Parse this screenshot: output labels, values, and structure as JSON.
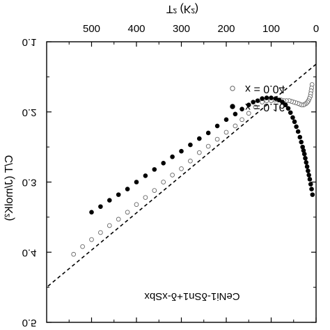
{
  "chart_data": {
    "type": "scatter",
    "orientation": "mirrored-horizontal",
    "xlabel": "T² (K²)",
    "ylabel": "C/T (J/molK²)",
    "annotation": "CeNi1-δSn1+δ-xSbx",
    "xlim": [
      0,
      600
    ],
    "ylim": [
      0.1,
      0.5
    ],
    "xticks": [
      "0",
      "100",
      "200",
      "300",
      "400",
      "500"
    ],
    "yticks": [
      "0.1",
      "0.2",
      "0.3",
      "0.4",
      "0.5"
    ],
    "legend_position": "top-right",
    "series": [
      {
        "name": "x = 0.04",
        "marker": "open-circle",
        "x": [
          9,
          10,
          11,
          12,
          13,
          15,
          17,
          19,
          22,
          25,
          28,
          32,
          36,
          40,
          45,
          50,
          55,
          60,
          66,
          72,
          78,
          85,
          92,
          100,
          110,
          120,
          135,
          150,
          165,
          180,
          200,
          220,
          240,
          260,
          280,
          300,
          320,
          340,
          360,
          380,
          400,
          420,
          440,
          460,
          480,
          500,
          520,
          540
        ],
        "y": [
          0.161,
          0.166,
          0.17,
          0.174,
          0.178,
          0.181,
          0.184,
          0.186,
          0.188,
          0.189,
          0.19,
          0.19,
          0.189,
          0.188,
          0.187,
          0.186,
          0.185,
          0.184,
          0.184,
          0.184,
          0.183,
          0.183,
          0.183,
          0.184,
          0.184,
          0.186,
          0.193,
          0.202,
          0.211,
          0.22,
          0.229,
          0.239,
          0.249,
          0.258,
          0.27,
          0.281,
          0.29,
          0.3,
          0.312,
          0.322,
          0.332,
          0.343,
          0.353,
          0.362,
          0.372,
          0.382,
          0.392,
          0.403
        ]
      },
      {
        "name": "x = 0.16",
        "marker": "filled-circle",
        "x": [
          8,
          10,
          12,
          14,
          16,
          18,
          20,
          22,
          24,
          26,
          28,
          30,
          33,
          36,
          40,
          44,
          48,
          52,
          57,
          62,
          68,
          75,
          82,
          90,
          100,
          110,
          120,
          130,
          140,
          150,
          165,
          180,
          200,
          220,
          240,
          260,
          280,
          300,
          320,
          340,
          360,
          380,
          400,
          420,
          440,
          460,
          480,
          500
        ],
        "y": [
          0.318,
          0.31,
          0.303,
          0.296,
          0.29,
          0.284,
          0.278,
          0.272,
          0.266,
          0.26,
          0.255,
          0.25,
          0.243,
          0.236,
          0.228,
          0.221,
          0.214,
          0.208,
          0.201,
          0.195,
          0.19,
          0.186,
          0.183,
          0.181,
          0.18,
          0.18,
          0.181,
          0.184,
          0.186,
          0.19,
          0.196,
          0.203,
          0.211,
          0.22,
          0.23,
          0.238,
          0.247,
          0.256,
          0.264,
          0.273,
          0.282,
          0.291,
          0.3,
          0.31,
          0.318,
          0.326,
          0.335,
          0.343
        ]
      }
    ],
    "fit_line": {
      "style": "dashed",
      "x": [
        0,
        600
      ],
      "y": [
        0.132,
        0.45
      ]
    }
  }
}
